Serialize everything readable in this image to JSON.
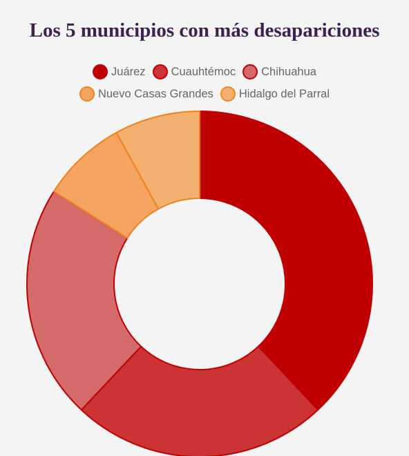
{
  "chart_data": {
    "type": "pie",
    "variant": "doughnut",
    "title": "Los 5 municipios con más desapariciones",
    "legend_position": "top",
    "categories": [
      "Juárez",
      "Cuauhtémoc",
      "Chihuahua",
      "Nuevo Casas Grandes",
      "Hidalgo del Parral"
    ],
    "values": [
      38,
      24,
      22,
      8,
      8
    ],
    "colors": {
      "fill": [
        "#c00000",
        "#cc3333",
        "#d56a6a",
        "#f4a460",
        "#f4b070"
      ],
      "border": [
        "#c00000",
        "#c00000",
        "#c00000",
        "#f0821e",
        "#f0821e"
      ]
    },
    "background": "#f4f4f4",
    "title_color": "#3d2150",
    "legend_text_color": "#666666"
  }
}
